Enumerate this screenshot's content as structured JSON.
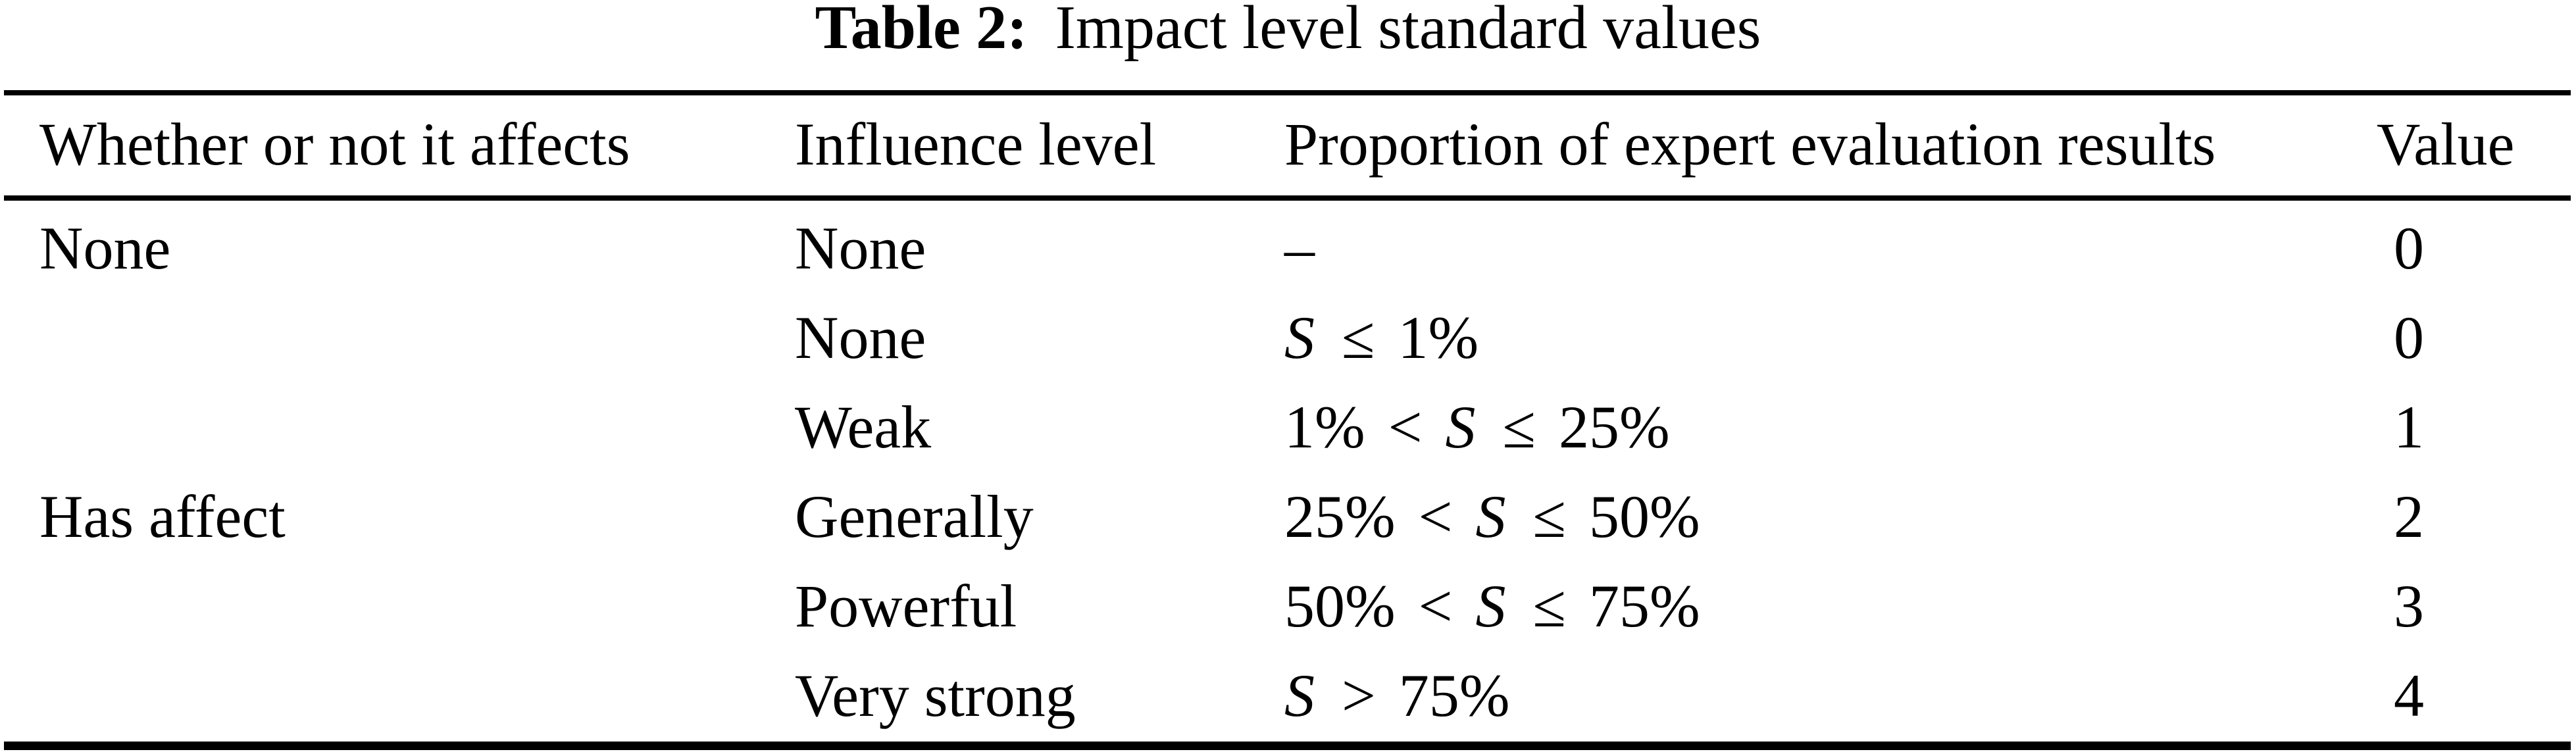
{
  "colors": {
    "text": "#000000",
    "background": "#ffffff"
  },
  "caption": {
    "label": "Table 2:",
    "text": "Impact level standard values"
  },
  "table": {
    "columns": [
      "Whether or not it affects",
      "Influence level",
      "Proportion of expert evaluation results",
      "Value"
    ],
    "rows": [
      {
        "affects": "None",
        "level": "None",
        "proportion": "–",
        "value": "0"
      },
      {
        "affects": "",
        "level": "None",
        "proportion": "S ≤ 1%",
        "value": "0"
      },
      {
        "affects": "",
        "level": "Weak",
        "proportion": "1% < S ≤ 25%",
        "value": "1"
      },
      {
        "affects": "Has affect",
        "level": "Generally",
        "proportion": "25% < S ≤ 50%",
        "value": "2"
      },
      {
        "affects": "",
        "level": "Powerful",
        "proportion": "50% < S ≤ 75%",
        "value": "3"
      },
      {
        "affects": "",
        "level": "Very strong",
        "proportion": "S > 75%",
        "value": "4"
      }
    ]
  }
}
